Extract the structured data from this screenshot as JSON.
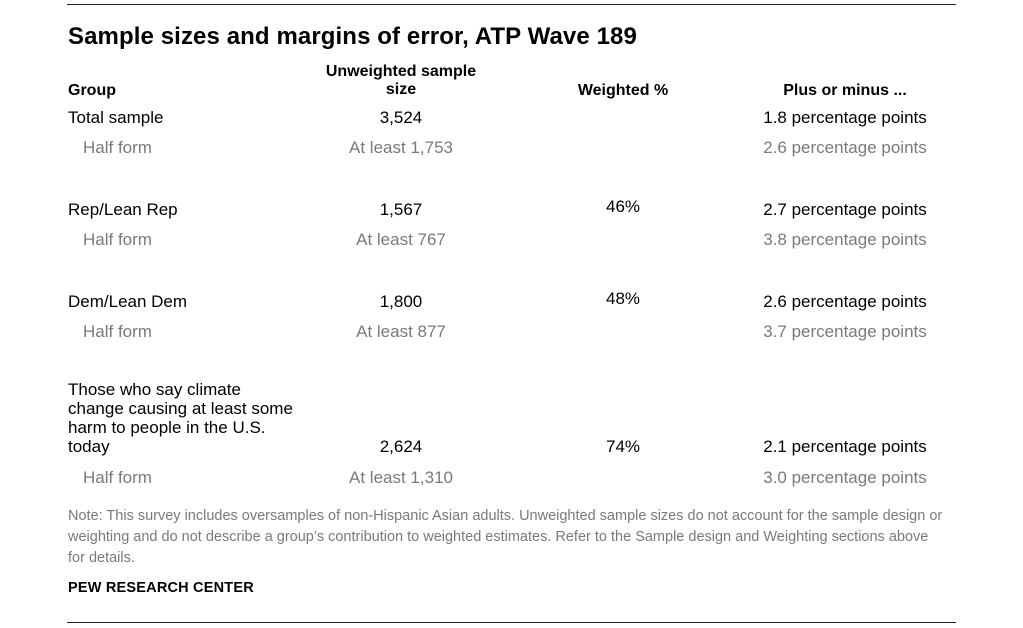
{
  "title": "Sample sizes and margins of error, ATP Wave 189",
  "headers": {
    "group": "Group",
    "unweighted": "Unweighted sample size",
    "weighted": "Weighted %",
    "moe": "Plus or minus ..."
  },
  "rows": [
    {
      "group": "Total sample",
      "n": "3,524",
      "weighted": "",
      "moe": "1.8 percentage points",
      "half_label": "Half form",
      "half_n": "At least 1,753",
      "half_moe": "2.6 percentage points"
    },
    {
      "group": "Rep/Lean Rep",
      "n": "1,567",
      "weighted": "46%",
      "moe": "2.7 percentage points",
      "half_label": "Half form",
      "half_n": "At least 767",
      "half_moe": "3.8 percentage points"
    },
    {
      "group": "Dem/Lean Dem",
      "n": "1,800",
      "weighted": "48%",
      "moe": "2.6 percentage points",
      "half_label": "Half form",
      "half_n": "At least 877",
      "half_moe": "3.7 percentage points"
    },
    {
      "group": "Those who say climate change causing at least some harm to people in the U.S. today",
      "n": "2,624",
      "weighted": "74%",
      "moe": "2.1 percentage points",
      "half_label": "Half form",
      "half_n": "At least 1,310",
      "half_moe": "3.0 percentage points"
    }
  ],
  "note": "Note: This survey includes oversamples of non-Hispanic Asian adults. Unweighted sample sizes do not account for the sample design or weighting and do not describe a group’s contribution to weighted estimates. Refer to the Sample design and Weighting sections above for details.",
  "source": "PEW RESEARCH CENTER"
}
